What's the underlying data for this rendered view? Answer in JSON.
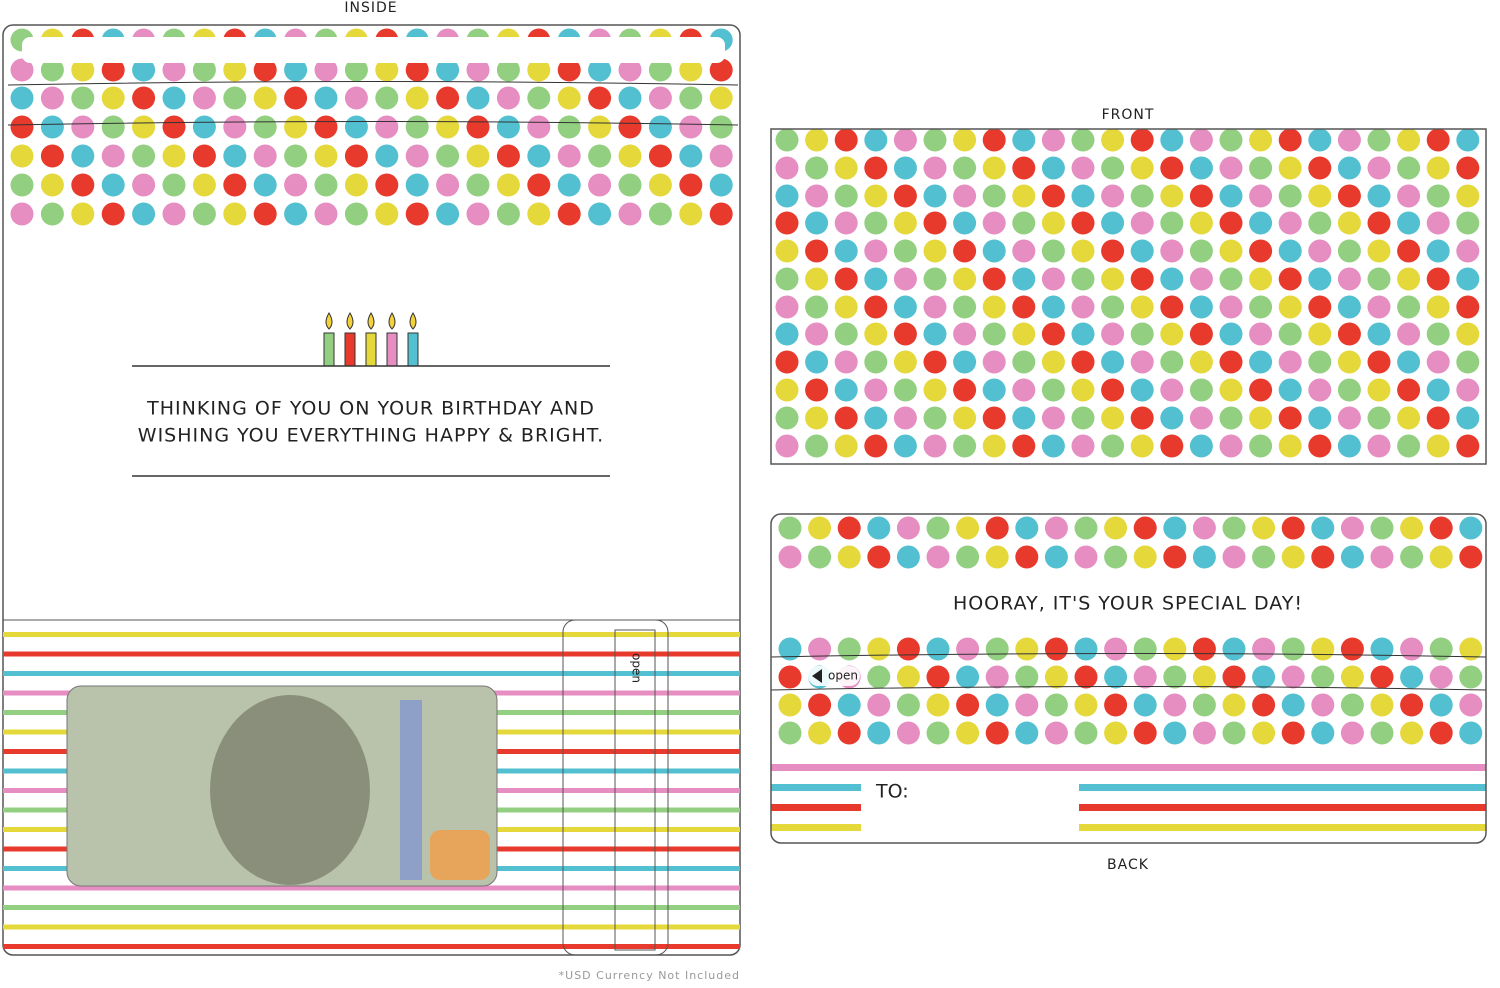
{
  "labels": {
    "inside": "INSIDE",
    "front": "FRONT",
    "back": "BACK"
  },
  "inside": {
    "message": [
      "THINKING OF YOU ON YOUR BIRTHDAY AND",
      "WISHING YOU EVERYTHING HAPPY & BRIGHT."
    ],
    "tab": "open"
  },
  "back": {
    "greeting": "HOORAY, IT'S YOUR SPECIAL DAY!",
    "tab": "open",
    "to": "TO:"
  },
  "footnote": "*USD Currency Not Included"
}
